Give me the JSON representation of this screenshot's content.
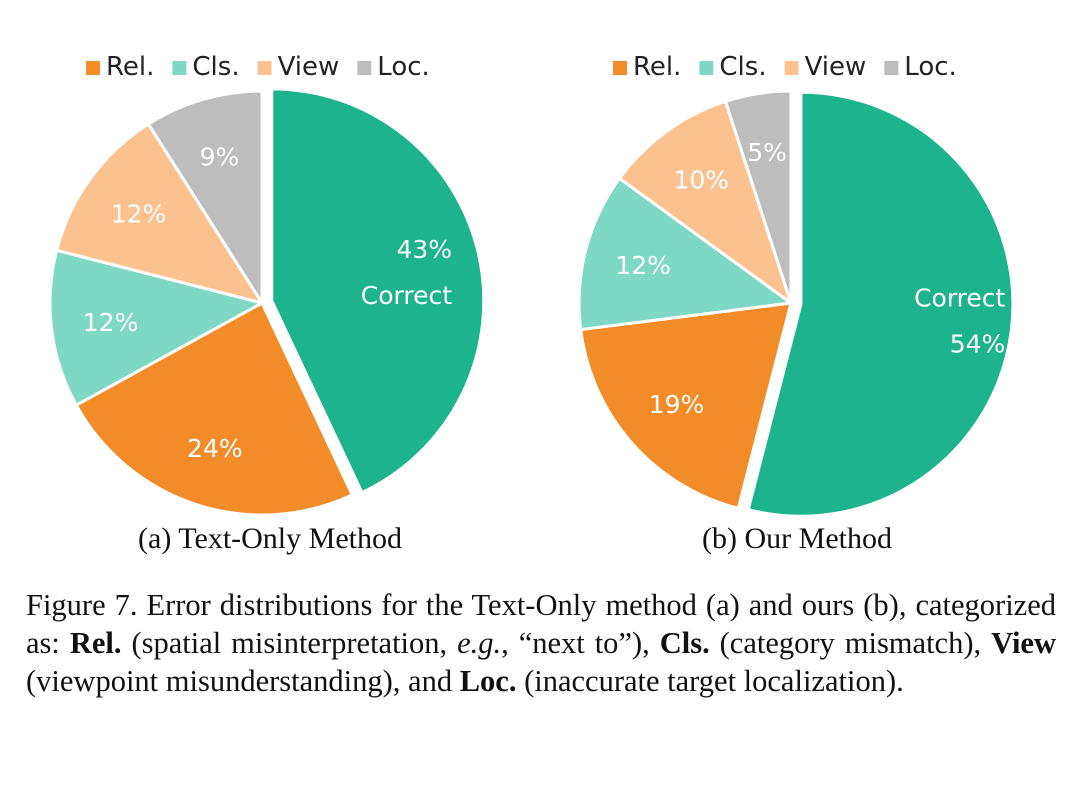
{
  "chart_data": [
    {
      "type": "pie",
      "subtitle": "(a) Text-Only Method",
      "legend": [
        "Rel.",
        "Cls.",
        "View",
        "Loc."
      ],
      "legend_position": "top",
      "slices": [
        {
          "label": "Correct",
          "value": 43,
          "display": "43%",
          "color": "#1db38c",
          "exploded": true
        },
        {
          "label": "Rel.",
          "value": 24,
          "display": "24%",
          "color": "#f28c28"
        },
        {
          "label": "Cls.",
          "value": 12,
          "display": "12%",
          "color": "#7fd8c3"
        },
        {
          "label": "View",
          "value": 12,
          "display": "12%",
          "color": "#fbc290"
        },
        {
          "label": "Loc.",
          "value": 9,
          "display": "9%",
          "color": "#bdbdbd"
        }
      ]
    },
    {
      "type": "pie",
      "subtitle": "(b) Our Method",
      "legend": [
        "Rel.",
        "Cls.",
        "View",
        "Loc."
      ],
      "legend_position": "top",
      "slices": [
        {
          "label": "Correct",
          "value": 54,
          "display": "54%",
          "color": "#1db38c",
          "exploded": true
        },
        {
          "label": "Rel.",
          "value": 19,
          "display": "19%",
          "color": "#f28c28"
        },
        {
          "label": "Cls.",
          "value": 12,
          "display": "12%",
          "color": "#7fd8c3"
        },
        {
          "label": "View",
          "value": 10,
          "display": "10%",
          "color": "#fbc290"
        },
        {
          "label": "Loc.",
          "value": 5,
          "display": "5%",
          "color": "#bdbdbd"
        }
      ]
    }
  ],
  "legend_colors": {
    "Rel.": "#f28c28",
    "Cls.": "#7fd8c3",
    "View": "#fbc290",
    "Loc.": "#bdbdbd"
  },
  "caption": {
    "prefix": "Figure 7. Error distributions for the Text-Only method (a) and ours (b), categorized as: ",
    "rel_term": "Rel.",
    "rel_desc_a": " (spatial misinterpretation, ",
    "eg": "e.g.",
    "rel_desc_b": ", “next to”), ",
    "cls_term": "Cls.",
    "cls_desc": " (category mismatch), ",
    "view_term": "View",
    "view_desc": " (viewpoint misunderstanding), and ",
    "loc_term": "Loc.",
    "loc_desc": " (inaccurate target localization)."
  }
}
